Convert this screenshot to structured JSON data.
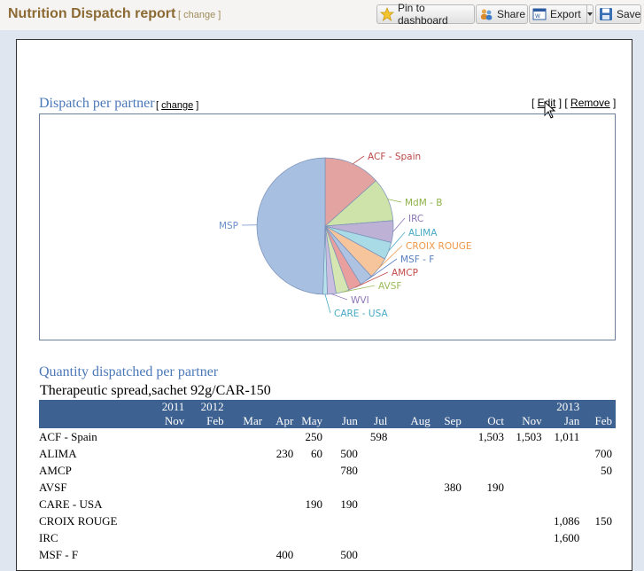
{
  "header": {
    "title": "Nutrition Dispatch report",
    "change_label": "change",
    "buttons": {
      "pin": "Pin to dashboard",
      "share": "Share",
      "export": "Export",
      "save": "Save"
    }
  },
  "section1": {
    "title": "Dispatch per partner",
    "change_label": "change",
    "edit_label": "Edit",
    "remove_label": "Remove"
  },
  "chart_data": {
    "type": "pie",
    "title": "",
    "slices": [
      {
        "label": "MSP",
        "value": 48,
        "color": "#a7bfe0"
      },
      {
        "label": "ACF - Spain",
        "value": 13,
        "color": "#e3a3a1"
      },
      {
        "label": "MdM - B",
        "value": 10,
        "color": "#cde3a9"
      },
      {
        "label": "IRC",
        "value": 5,
        "color": "#beb1d6"
      },
      {
        "label": "ALIMA",
        "value": 4,
        "color": "#a9dbe6"
      },
      {
        "label": "CROIX ROUGE",
        "value": 5,
        "color": "#f7c59b"
      },
      {
        "label": "MSF - F",
        "value": 3,
        "color": "#aec2e2"
      },
      {
        "label": "AMCP",
        "value": 3,
        "color": "#e89f9d"
      },
      {
        "label": "AVSF",
        "value": 3,
        "color": "#d5e6b2"
      },
      {
        "label": "WVI",
        "value": 2,
        "color": "#c9bde0"
      },
      {
        "label": "CARE - USA",
        "value": 1,
        "color": "#b6e2ec"
      }
    ],
    "label_colors": {
      "MSP": "#6b8fc7",
      "ACF - Spain": "#b94a48",
      "MdM - B": "#8fb24a",
      "IRC": "#8b75b5",
      "ALIMA": "#47a9c4",
      "CROIX ROUGE": "#ef9848",
      "MSF - F": "#5b7fc0",
      "AMCP": "#c34b48",
      "AVSF": "#9cba5a",
      "WVI": "#8d76b6",
      "CARE - USA": "#47a9c4"
    }
  },
  "section2": {
    "title": "Quantity dispatched per partner",
    "subtitle": "Therapeutic spread,sachet 92g/CAR-150"
  },
  "table": {
    "years": [
      "2011",
      "2012",
      "",
      "",
      "",
      "",
      "",
      "",
      "",
      "",
      "",
      "2013",
      ""
    ],
    "months": [
      "Nov",
      "Feb",
      "Mar",
      "Apr",
      "May",
      "Jun",
      "Jul",
      "Aug",
      "Sep",
      "Oct",
      "Nov",
      "Jan",
      "Feb"
    ],
    "rows": [
      {
        "partner": "ACF - Spain",
        "values": [
          "",
          "",
          "",
          "",
          "250",
          "",
          "598",
          "",
          "",
          "1,503",
          "1,503",
          "1,011",
          ""
        ]
      },
      {
        "partner": "ALIMA",
        "values": [
          "",
          "",
          "",
          "230",
          "60",
          "500",
          "",
          "",
          "",
          "",
          "",
          "",
          "700"
        ]
      },
      {
        "partner": "AMCP",
        "values": [
          "",
          "",
          "",
          "",
          "",
          "780",
          "",
          "",
          "",
          "",
          "",
          "",
          "50"
        ]
      },
      {
        "partner": "AVSF",
        "values": [
          "",
          "",
          "",
          "",
          "",
          "",
          "",
          "",
          "380",
          "190",
          "",
          "",
          ""
        ]
      },
      {
        "partner": "CARE - USA",
        "values": [
          "",
          "",
          "",
          "",
          "190",
          "190",
          "",
          "",
          "",
          "",
          "",
          "",
          ""
        ]
      },
      {
        "partner": "CROIX ROUGE",
        "values": [
          "",
          "",
          "",
          "",
          "",
          "",
          "",
          "",
          "",
          "",
          "",
          "1,086",
          "150"
        ]
      },
      {
        "partner": "IRC",
        "values": [
          "",
          "",
          "",
          "",
          "",
          "",
          "",
          "",
          "",
          "",
          "",
          "1,600",
          ""
        ]
      },
      {
        "partner": "MSF - F",
        "values": [
          "",
          "",
          "",
          "400",
          "",
          "500",
          "",
          "",
          "",
          "",
          "",
          "",
          ""
        ]
      }
    ]
  }
}
